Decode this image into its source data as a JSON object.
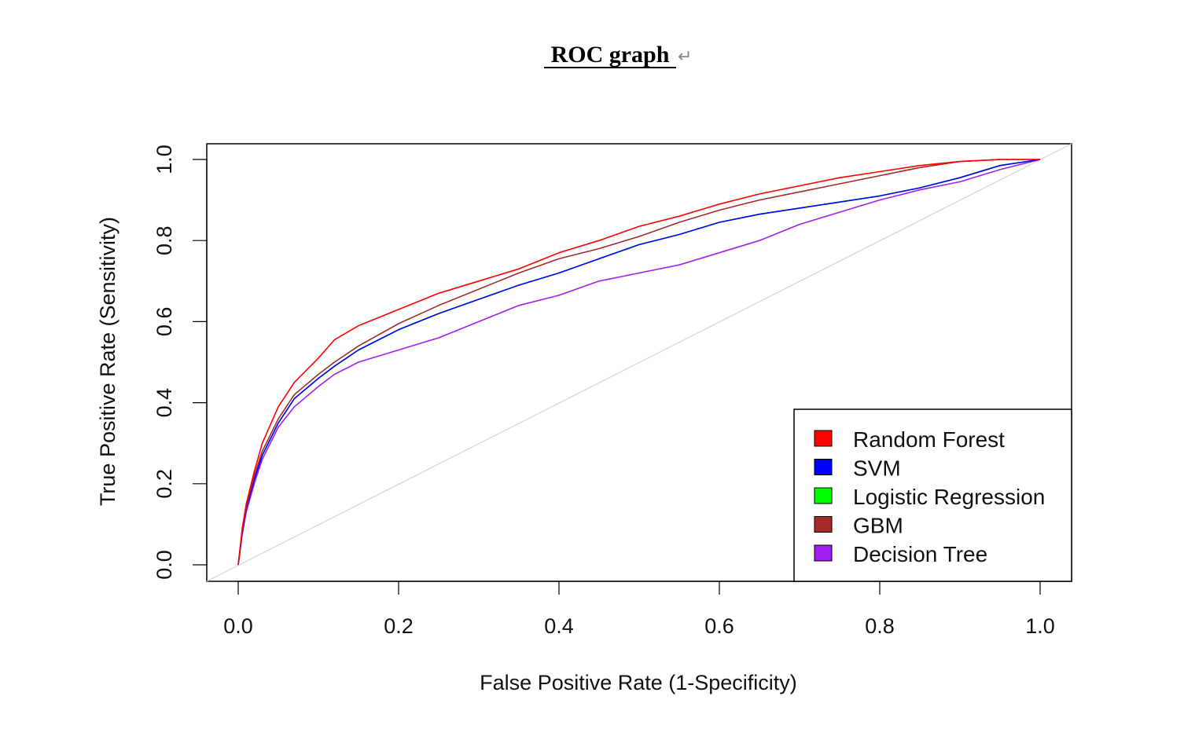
{
  "page": {
    "title": "ROC graph",
    "title_mark": "↵"
  },
  "chart_data": {
    "type": "line",
    "title": "ROC graph",
    "xlabel": "False Positive Rate (1-Specificity)",
    "ylabel": "True Positive Rate (Sensitivity)",
    "xlim": [
      0,
      1
    ],
    "ylim": [
      0,
      1
    ],
    "xticks": [
      "0.0",
      "0.2",
      "0.4",
      "0.6",
      "0.8",
      "1.0"
    ],
    "yticks": [
      "0.0",
      "0.2",
      "0.4",
      "0.6",
      "0.8",
      "1.0"
    ],
    "grid": false,
    "legend_position": "bottom-right",
    "reference_line": {
      "x": [
        0,
        1
      ],
      "y": [
        0,
        1
      ],
      "color": "#d3d3d3"
    },
    "series": [
      {
        "name": "Random Forest",
        "color": "#ff0000",
        "x": [
          0,
          0.005,
          0.01,
          0.02,
          0.03,
          0.05,
          0.07,
          0.1,
          0.12,
          0.15,
          0.2,
          0.25,
          0.3,
          0.35,
          0.4,
          0.45,
          0.5,
          0.55,
          0.6,
          0.65,
          0.7,
          0.75,
          0.8,
          0.85,
          0.9,
          0.95,
          1.0
        ],
        "y": [
          0,
          0.09,
          0.15,
          0.23,
          0.3,
          0.39,
          0.45,
          0.51,
          0.555,
          0.59,
          0.63,
          0.67,
          0.7,
          0.73,
          0.77,
          0.8,
          0.835,
          0.86,
          0.89,
          0.915,
          0.935,
          0.955,
          0.97,
          0.985,
          0.995,
          1.0,
          1.0
        ]
      },
      {
        "name": "SVM",
        "color": "#0000ff",
        "x": [
          0,
          0.005,
          0.01,
          0.02,
          0.03,
          0.05,
          0.07,
          0.1,
          0.12,
          0.15,
          0.2,
          0.25,
          0.3,
          0.35,
          0.4,
          0.45,
          0.5,
          0.55,
          0.6,
          0.65,
          0.7,
          0.75,
          0.8,
          0.85,
          0.9,
          0.95,
          1.0
        ],
        "y": [
          0,
          0.08,
          0.14,
          0.21,
          0.27,
          0.35,
          0.41,
          0.46,
          0.49,
          0.53,
          0.58,
          0.62,
          0.655,
          0.69,
          0.72,
          0.755,
          0.79,
          0.815,
          0.845,
          0.865,
          0.88,
          0.895,
          0.91,
          0.93,
          0.955,
          0.985,
          1.0
        ]
      },
      {
        "name": "Logistic Regression",
        "color": "#00ff00",
        "x": [
          0,
          0.005,
          0.01,
          0.02,
          0.03,
          0.05,
          0.07,
          0.1,
          0.12,
          0.15,
          0.2,
          0.25,
          0.3,
          0.35,
          0.4,
          0.45,
          0.5,
          0.55,
          0.6,
          0.65,
          0.7,
          0.75,
          0.8,
          0.85,
          0.9,
          0.95,
          1.0
        ],
        "y": [
          0,
          0.08,
          0.14,
          0.21,
          0.27,
          0.35,
          0.41,
          0.46,
          0.49,
          0.53,
          0.58,
          0.62,
          0.655,
          0.69,
          0.72,
          0.755,
          0.79,
          0.815,
          0.845,
          0.865,
          0.88,
          0.895,
          0.91,
          0.93,
          0.955,
          0.985,
          1.0
        ]
      },
      {
        "name": "GBM",
        "color": "#a52a2a",
        "x": [
          0,
          0.005,
          0.01,
          0.02,
          0.03,
          0.05,
          0.07,
          0.1,
          0.12,
          0.15,
          0.2,
          0.25,
          0.3,
          0.35,
          0.4,
          0.45,
          0.5,
          0.55,
          0.6,
          0.65,
          0.7,
          0.75,
          0.8,
          0.85,
          0.9,
          0.95,
          1.0
        ],
        "y": [
          0,
          0.085,
          0.145,
          0.22,
          0.28,
          0.36,
          0.42,
          0.47,
          0.5,
          0.54,
          0.595,
          0.64,
          0.68,
          0.72,
          0.755,
          0.78,
          0.81,
          0.845,
          0.875,
          0.9,
          0.92,
          0.94,
          0.96,
          0.98,
          0.995,
          1.0,
          1.0
        ]
      },
      {
        "name": "Decision Tree",
        "color": "#a020f0",
        "x": [
          0,
          0.005,
          0.01,
          0.02,
          0.03,
          0.05,
          0.07,
          0.1,
          0.12,
          0.15,
          0.2,
          0.25,
          0.3,
          0.35,
          0.4,
          0.45,
          0.5,
          0.55,
          0.6,
          0.65,
          0.7,
          0.75,
          0.8,
          0.85,
          0.9,
          0.95,
          1.0
        ],
        "y": [
          0,
          0.075,
          0.13,
          0.2,
          0.26,
          0.34,
          0.39,
          0.44,
          0.47,
          0.5,
          0.53,
          0.56,
          0.6,
          0.64,
          0.665,
          0.7,
          0.72,
          0.74,
          0.77,
          0.8,
          0.84,
          0.87,
          0.9,
          0.925,
          0.945,
          0.975,
          1.0
        ]
      }
    ]
  }
}
